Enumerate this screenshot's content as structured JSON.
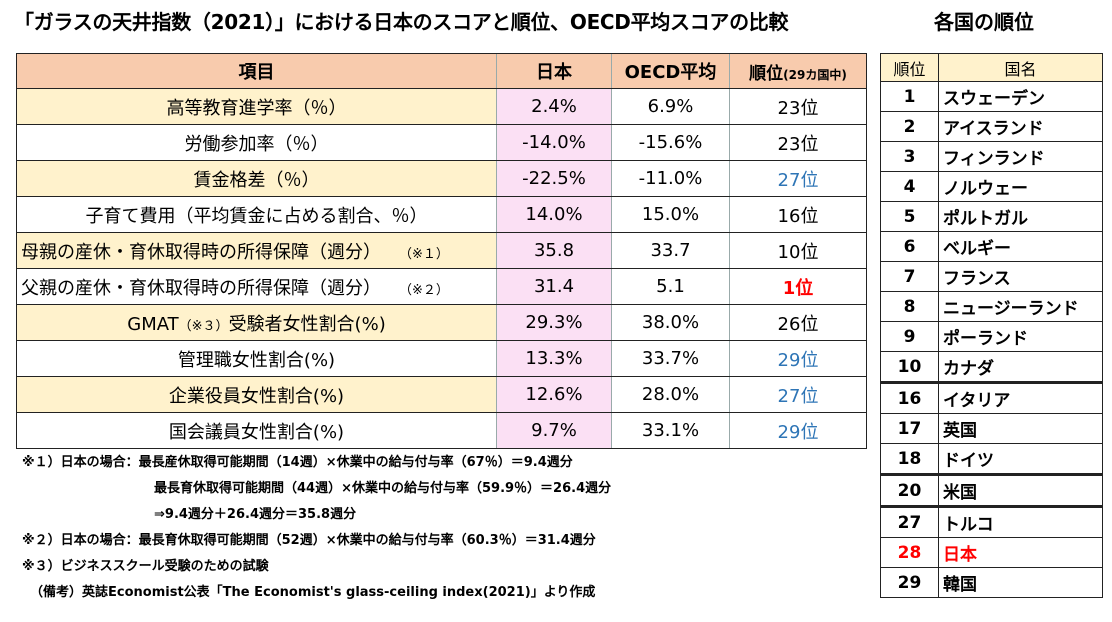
{
  "title": "「ガラスの天井指数（2021）」における日本のスコアと順位、OECD平均スコアの比較",
  "ranking_title": "各国の順位",
  "table": {
    "headers": {
      "item": "項目",
      "japan": "日本",
      "oecd": "OECD平均",
      "rank": "順位",
      "rank_note": "(29カ国中)"
    },
    "rows": [
      {
        "item": "高等教育進学率（％）",
        "japan": "2.4%",
        "oecd": "6.9%",
        "rank": "23位"
      },
      {
        "item": "労働参加率（％）",
        "japan": "-14.0%",
        "oecd": "-15.6%",
        "rank": "23位"
      },
      {
        "item": "賃金格差（％）",
        "japan": "-22.5%",
        "oecd": "-11.0%",
        "rank": "27位"
      },
      {
        "item": "子育て費用（平均賃金に占める割合、％）",
        "japan": "14.0%",
        "oecd": "15.0%",
        "rank": "16位"
      },
      {
        "item": "母親の産休・育休取得時の所得保障（週分）",
        "item_note": "（※１）",
        "japan": "35.8",
        "oecd": "33.7",
        "rank": "10位"
      },
      {
        "item": "父親の産休・育休取得時の所得保障（週分）",
        "item_note": "（※２）",
        "japan": "31.4",
        "oecd": "5.1",
        "rank": "1位"
      },
      {
        "item_pre": "GMAT",
        "item_note": "（※３）",
        "item": "受験者女性割合(%)",
        "japan": "29.3%",
        "oecd": "38.0%",
        "rank": "26位"
      },
      {
        "item": "管理職女性割合(%)",
        "japan": "13.3%",
        "oecd": "33.7%",
        "rank": "29位"
      },
      {
        "item": "企業役員女性割合(%)",
        "japan": "12.6%",
        "oecd": "28.0%",
        "rank": "27位"
      },
      {
        "item": "国会議員女性割合(%)",
        "japan": "9.7%",
        "oecd": "33.1%",
        "rank": "29位"
      }
    ]
  },
  "notes": {
    "n1a": "※１）日本の場合：最長産休取得可能期間（14週）×休業中の給与付与率（67％）＝9.4週分",
    "n1b": "最長育休取得可能期間（44週）×休業中の給与付与率（59.9％）＝26.4週分",
    "n1c": "⇒9.4週分＋26.4週分＝35.8週分",
    "n2": "※２）日本の場合：最長育休取得可能期間（52週）×休業中の給与付与率（60.3％）＝31.4週分",
    "n3": "※３）ビジネススクール受験のための試験",
    "source": "（備考）英誌Economist公表「The Economist's glass-ceiling index(2021)」より作成"
  },
  "ranking": {
    "headers": {
      "rank": "順位",
      "country": "国名"
    },
    "rows": [
      {
        "rank": "1",
        "country": "スウェーデン"
      },
      {
        "rank": "2",
        "country": "アイスランド"
      },
      {
        "rank": "3",
        "country": "フィンランド"
      },
      {
        "rank": "4",
        "country": "ノルウェー"
      },
      {
        "rank": "5",
        "country": "ポルトガル"
      },
      {
        "rank": "6",
        "country": "ベルギー"
      },
      {
        "rank": "7",
        "country": "フランス"
      },
      {
        "rank": "8",
        "country": "ニュージーランド"
      },
      {
        "rank": "9",
        "country": "ポーランド"
      },
      {
        "rank": "10",
        "country": "カナダ"
      },
      {
        "rank": "16",
        "country": "イタリア"
      },
      {
        "rank": "17",
        "country": "英国"
      },
      {
        "rank": "18",
        "country": "ドイツ"
      },
      {
        "rank": "20",
        "country": "米国"
      },
      {
        "rank": "27",
        "country": "トルコ"
      },
      {
        "rank": "28",
        "country": "日本"
      },
      {
        "rank": "29",
        "country": "韓国"
      }
    ]
  },
  "colors": {
    "header_bg": "#f8cbad",
    "item_highlight_bg": "#fff2cc",
    "japan_col_bg": "#fbe0f4",
    "blue_rank": "#2e75b6",
    "red_rank": "#ff0000"
  }
}
